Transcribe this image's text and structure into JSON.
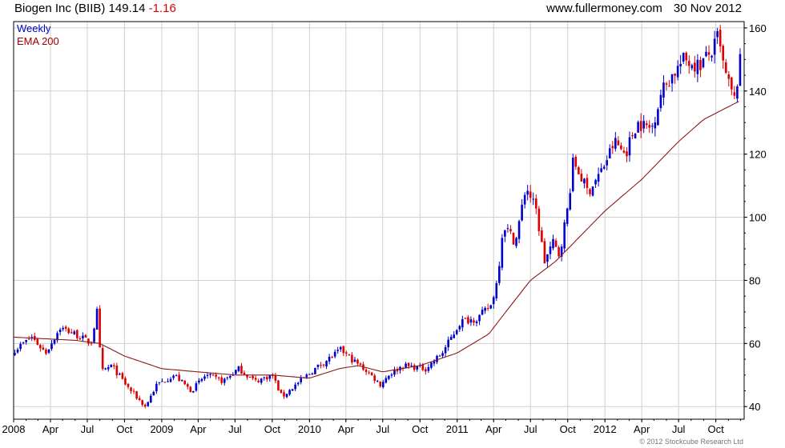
{
  "header": {
    "ticker_label": "Biogen Inc (BIIB) 149.14",
    "change": "-1.16",
    "site": "www.fullermoney.com",
    "date": "30 Nov 2012"
  },
  "legend": {
    "frequency": "Weekly",
    "indicator": "EMA 200"
  },
  "footer": {
    "copyright": "© 2012 Stockcube Research Ltd"
  },
  "chart_data": {
    "type": "candlestick",
    "x_tick_labels": [
      "2008",
      "Apr",
      "Jul",
      "Oct",
      "2009",
      "Apr",
      "Jul",
      "Oct",
      "2010",
      "Apr",
      "Jul",
      "Oct",
      "2011",
      "Apr",
      "Jul",
      "Oct",
      "2012",
      "Apr",
      "Jul",
      "Oct"
    ],
    "y_ticks": [
      40,
      60,
      80,
      100,
      120,
      140,
      160
    ],
    "ylim": [
      36,
      162
    ],
    "xlim": [
      "2008-01-01",
      "2012-12-10"
    ],
    "colors": {
      "up": "#0000cc",
      "down": "#dd0000",
      "ema": "#8b1a1a",
      "grid": "#d0d0d0"
    },
    "price_anchors": [
      [
        "2008-01-04",
        58
      ],
      [
        "2008-02-15",
        62
      ],
      [
        "2008-03-20",
        57
      ],
      [
        "2008-04-25",
        65
      ],
      [
        "2008-06-01",
        63
      ],
      [
        "2008-07-10",
        60
      ],
      [
        "2008-07-25",
        70
      ],
      [
        "2008-08-05",
        51
      ],
      [
        "2008-08-30",
        53
      ],
      [
        "2008-10-10",
        46
      ],
      [
        "2008-11-21",
        40
      ],
      [
        "2008-12-20",
        47
      ],
      [
        "2009-02-01",
        50
      ],
      [
        "2009-03-15",
        45
      ],
      [
        "2009-04-20",
        50
      ],
      [
        "2009-06-01",
        48
      ],
      [
        "2009-07-10",
        52
      ],
      [
        "2009-08-20",
        48
      ],
      [
        "2009-10-01",
        50
      ],
      [
        "2009-10-25",
        43
      ],
      [
        "2009-11-20",
        46
      ],
      [
        "2010-01-15",
        52
      ],
      [
        "2010-03-20",
        58
      ],
      [
        "2010-04-15",
        55
      ],
      [
        "2010-05-25",
        51
      ],
      [
        "2010-06-25",
        47
      ],
      [
        "2010-07-15",
        50
      ],
      [
        "2010-08-20",
        53
      ],
      [
        "2010-10-15",
        52
      ],
      [
        "2010-11-25",
        57
      ],
      [
        "2011-01-10",
        67
      ],
      [
        "2011-02-20",
        68
      ],
      [
        "2011-03-25",
        72
      ],
      [
        "2011-04-10",
        80
      ],
      [
        "2011-04-25",
        98
      ],
      [
        "2011-05-25",
        92
      ],
      [
        "2011-06-20",
        110
      ],
      [
        "2011-07-15",
        102
      ],
      [
        "2011-08-05",
        86
      ],
      [
        "2011-08-25",
        92
      ],
      [
        "2011-09-10",
        88
      ],
      [
        "2011-10-01",
        103
      ],
      [
        "2011-10-15",
        118
      ],
      [
        "2011-11-20",
        108
      ],
      [
        "2011-12-25",
        115
      ],
      [
        "2012-01-25",
        124
      ],
      [
        "2012-02-20",
        120
      ],
      [
        "2012-03-20",
        130
      ],
      [
        "2012-04-25",
        128
      ],
      [
        "2012-05-20",
        140
      ],
      [
        "2012-06-15",
        145
      ],
      [
        "2012-07-15",
        150
      ],
      [
        "2012-08-20",
        148
      ],
      [
        "2012-09-25",
        153
      ],
      [
        "2012-10-05",
        157
      ],
      [
        "2012-10-25",
        145
      ],
      [
        "2012-11-16",
        137
      ],
      [
        "2012-11-30",
        149.14
      ]
    ],
    "ema_anchors": [
      [
        "2008-01-01",
        62
      ],
      [
        "2008-06-01",
        61
      ],
      [
        "2008-08-01",
        60
      ],
      [
        "2008-10-01",
        56
      ],
      [
        "2009-01-01",
        52
      ],
      [
        "2009-04-01",
        51
      ],
      [
        "2009-07-01",
        50
      ],
      [
        "2009-10-01",
        50
      ],
      [
        "2010-01-01",
        49
      ],
      [
        "2010-03-15",
        52
      ],
      [
        "2010-05-01",
        53
      ],
      [
        "2010-07-01",
        51
      ],
      [
        "2010-10-01",
        53
      ],
      [
        "2011-01-01",
        57
      ],
      [
        "2011-03-20",
        63
      ],
      [
        "2011-05-01",
        70
      ],
      [
        "2011-07-01",
        80
      ],
      [
        "2011-09-01",
        86
      ],
      [
        "2011-11-01",
        94
      ],
      [
        "2012-01-01",
        102
      ],
      [
        "2012-04-01",
        112
      ],
      [
        "2012-07-01",
        124
      ],
      [
        "2012-09-01",
        131
      ],
      [
        "2012-11-01",
        135
      ],
      [
        "2012-12-01",
        137
      ]
    ]
  }
}
